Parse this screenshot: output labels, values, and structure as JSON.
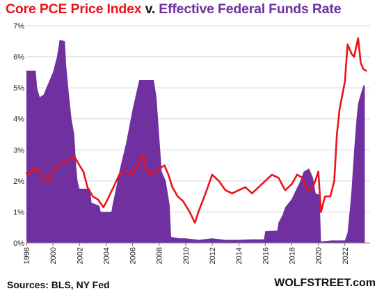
{
  "chart_data": {
    "type": "line",
    "title_parts": [
      "Core PCE Price Index",
      " v. ",
      "Effective Federal Funds Rate"
    ],
    "source": "Sources: BLS, NY Fed",
    "brand": "WOLFSTREET.com",
    "xlim": [
      1998,
      2023.9
    ],
    "ylim": [
      0,
      7
    ],
    "grid": true,
    "x_ticks": [
      1998,
      2000,
      2002,
      2004,
      2006,
      2008,
      2010,
      2012,
      2014,
      2016,
      2018,
      2020,
      2022
    ],
    "y_ticks": [
      {
        "value": 0,
        "label": "0%"
      },
      {
        "value": 1,
        "label": "1%"
      },
      {
        "value": 2,
        "label": "2%"
      },
      {
        "value": 3,
        "label": "3%"
      },
      {
        "value": 4,
        "label": "4%"
      },
      {
        "value": 5,
        "label": "5%"
      },
      {
        "value": 6,
        "label": "6%"
      },
      {
        "value": 7,
        "label": "7%"
      }
    ],
    "colors": {
      "core_pce": "#e8141b",
      "fed_funds": "#7030a0"
    },
    "series": [
      {
        "name": "Effective Federal Funds Rate",
        "kind": "area",
        "points": [
          [
            1998.0,
            5.55
          ],
          [
            1998.7,
            5.55
          ],
          [
            1998.8,
            5.0
          ],
          [
            1999.0,
            4.7
          ],
          [
            1999.3,
            4.78
          ],
          [
            1999.5,
            5.0
          ],
          [
            1999.8,
            5.3
          ],
          [
            2000.0,
            5.5
          ],
          [
            2000.3,
            6.0
          ],
          [
            2000.5,
            6.55
          ],
          [
            2000.9,
            6.5
          ],
          [
            2001.0,
            5.7
          ],
          [
            2001.2,
            4.8
          ],
          [
            2001.4,
            4.0
          ],
          [
            2001.6,
            3.5
          ],
          [
            2001.75,
            2.5
          ],
          [
            2001.85,
            2.0
          ],
          [
            2002.0,
            1.75
          ],
          [
            2002.8,
            1.75
          ],
          [
            2002.9,
            1.3
          ],
          [
            2003.5,
            1.2
          ],
          [
            2003.6,
            1.0
          ],
          [
            2004.4,
            1.0
          ],
          [
            2004.5,
            1.25
          ],
          [
            2004.75,
            1.75
          ],
          [
            2005.0,
            2.3
          ],
          [
            2005.5,
            3.2
          ],
          [
            2006.0,
            4.3
          ],
          [
            2006.5,
            5.25
          ],
          [
            2007.6,
            5.25
          ],
          [
            2007.8,
            4.7
          ],
          [
            2008.0,
            3.5
          ],
          [
            2008.2,
            2.3
          ],
          [
            2008.5,
            2.0
          ],
          [
            2008.8,
            1.2
          ],
          [
            2008.9,
            0.2
          ],
          [
            2009.5,
            0.15
          ],
          [
            2010.0,
            0.15
          ],
          [
            2011.0,
            0.1
          ],
          [
            2012.0,
            0.15
          ],
          [
            2013.0,
            0.1
          ],
          [
            2014.0,
            0.1
          ],
          [
            2015.0,
            0.12
          ],
          [
            2015.9,
            0.12
          ],
          [
            2016.0,
            0.38
          ],
          [
            2016.9,
            0.4
          ],
          [
            2017.0,
            0.66
          ],
          [
            2017.3,
            0.9
          ],
          [
            2017.5,
            1.15
          ],
          [
            2018.0,
            1.42
          ],
          [
            2018.3,
            1.7
          ],
          [
            2018.6,
            1.95
          ],
          [
            2018.9,
            2.3
          ],
          [
            2019.3,
            2.4
          ],
          [
            2019.6,
            2.1
          ],
          [
            2019.8,
            1.6
          ],
          [
            2020.1,
            1.55
          ],
          [
            2020.2,
            0.05
          ],
          [
            2021.0,
            0.08
          ],
          [
            2022.0,
            0.08
          ],
          [
            2022.2,
            0.33
          ],
          [
            2022.4,
            1.2
          ],
          [
            2022.5,
            1.7
          ],
          [
            2022.7,
            3.0
          ],
          [
            2022.9,
            4.1
          ],
          [
            2023.0,
            4.5
          ],
          [
            2023.2,
            4.8
          ],
          [
            2023.4,
            5.08
          ],
          [
            2023.5,
            5.08
          ]
        ]
      },
      {
        "name": "Core PCE Price Index",
        "kind": "line",
        "points": [
          [
            1998.0,
            2.25
          ],
          [
            1998.3,
            2.2
          ],
          [
            1998.6,
            2.45
          ],
          [
            1999.0,
            2.3
          ],
          [
            1999.3,
            2.05
          ],
          [
            1999.6,
            1.95
          ],
          [
            2000.0,
            2.35
          ],
          [
            2000.5,
            2.55
          ],
          [
            2001.0,
            2.6
          ],
          [
            2001.3,
            2.7
          ],
          [
            2001.6,
            2.8
          ],
          [
            2002.0,
            2.5
          ],
          [
            2002.3,
            2.3
          ],
          [
            2002.6,
            1.8
          ],
          [
            2003.0,
            1.5
          ],
          [
            2003.4,
            1.4
          ],
          [
            2003.8,
            1.15
          ],
          [
            2004.0,
            1.3
          ],
          [
            2004.5,
            1.75
          ],
          [
            2005.0,
            2.2
          ],
          [
            2005.5,
            2.35
          ],
          [
            2006.0,
            2.2
          ],
          [
            2006.4,
            2.5
          ],
          [
            2006.8,
            2.85
          ],
          [
            2007.0,
            2.4
          ],
          [
            2007.4,
            2.2
          ],
          [
            2007.8,
            2.3
          ],
          [
            2008.0,
            2.4
          ],
          [
            2008.4,
            2.5
          ],
          [
            2008.7,
            2.2
          ],
          [
            2009.0,
            1.8
          ],
          [
            2009.4,
            1.5
          ],
          [
            2009.8,
            1.35
          ],
          [
            2010.3,
            1.0
          ],
          [
            2010.7,
            0.65
          ],
          [
            2011.0,
            1.05
          ],
          [
            2011.5,
            1.6
          ],
          [
            2012.0,
            2.2
          ],
          [
            2012.5,
            2.0
          ],
          [
            2013.0,
            1.7
          ],
          [
            2013.5,
            1.6
          ],
          [
            2014.0,
            1.7
          ],
          [
            2014.5,
            1.8
          ],
          [
            2015.0,
            1.6
          ],
          [
            2015.5,
            1.8
          ],
          [
            2016.0,
            2.0
          ],
          [
            2016.5,
            2.2
          ],
          [
            2017.0,
            2.1
          ],
          [
            2017.5,
            1.7
          ],
          [
            2018.0,
            1.9
          ],
          [
            2018.4,
            2.2
          ],
          [
            2018.8,
            2.1
          ],
          [
            2019.2,
            1.7
          ],
          [
            2019.6,
            1.8
          ],
          [
            2020.0,
            2.3
          ],
          [
            2020.2,
            1.0
          ],
          [
            2020.5,
            1.5
          ],
          [
            2020.9,
            1.5
          ],
          [
            2021.2,
            2.0
          ],
          [
            2021.4,
            3.5
          ],
          [
            2021.6,
            4.3
          ],
          [
            2022.0,
            5.2
          ],
          [
            2022.2,
            6.4
          ],
          [
            2022.5,
            6.1
          ],
          [
            2022.7,
            6.0
          ],
          [
            2022.9,
            6.4
          ],
          [
            2023.0,
            6.6
          ],
          [
            2023.2,
            5.8
          ],
          [
            2023.4,
            5.6
          ],
          [
            2023.6,
            5.55
          ]
        ]
      }
    ]
  }
}
